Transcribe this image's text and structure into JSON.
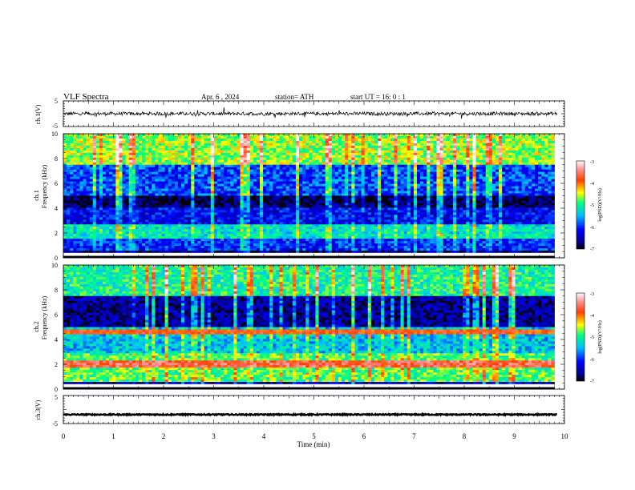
{
  "header": {
    "title": "VLF Spectra",
    "date": "Apr. 6 , 2024",
    "station": "station= ATH",
    "start": "start UT = 16: 0 : 1"
  },
  "chart_data": [
    {
      "type": "line",
      "panel": "ch1-waveform",
      "ylabel": "ch.1(V)",
      "ylim": [
        -5,
        5
      ],
      "y_ticks": [
        "5",
        "-5"
      ],
      "x_range": [
        0,
        10
      ],
      "series": [
        {
          "mean": 0,
          "noise_amplitude_v": 0.7
        }
      ]
    },
    {
      "type": "heatmap",
      "panel": "ch1-spectrogram",
      "ylabel_lines": [
        "ch.1",
        "Frequency (kHz)"
      ],
      "ylim": [
        0,
        10
      ],
      "y_ticks": [
        "0",
        "2",
        "4",
        "6",
        "8",
        "10"
      ],
      "x_range": [
        0,
        10
      ],
      "data_end_min": 9.8,
      "colorbar": {
        "label": "log(PSD)(V²/Hz)",
        "range": [
          -7,
          -3
        ],
        "ticks": [
          "-3",
          "-4",
          "-5",
          "-6",
          "-7"
        ]
      },
      "bands_khz": [
        {
          "from": 0,
          "to": 0.6,
          "log_psd": -6.8
        },
        {
          "from": 0.6,
          "to": 1.5,
          "log_psd": -6.0
        },
        {
          "from": 1.5,
          "to": 2.6,
          "log_psd": -5.2
        },
        {
          "from": 2.6,
          "to": 4.0,
          "log_psd": -6.2
        },
        {
          "from": 4.0,
          "to": 5.0,
          "log_psd": -6.8
        },
        {
          "from": 5.0,
          "to": 7.5,
          "log_psd": -5.9
        },
        {
          "from": 7.5,
          "to": 10.0,
          "log_psd": -4.6
        }
      ]
    },
    {
      "type": "heatmap",
      "panel": "ch2-spectrogram",
      "ylabel_lines": [
        "ch.2",
        "Frequency (kHz)"
      ],
      "ylim": [
        0,
        10
      ],
      "y_ticks": [
        "0",
        "2",
        "4",
        "6",
        "8",
        "10"
      ],
      "x_range": [
        0,
        10
      ],
      "data_end_min": 9.8,
      "colorbar": {
        "label": "log(PSD)(V²/Hz)",
        "range": [
          -7,
          -3
        ],
        "ticks": [
          "-3",
          "-4",
          "-5",
          "-6",
          "-7"
        ]
      },
      "bands_khz": [
        {
          "from": 0,
          "to": 0.6,
          "log_psd": -6.5
        },
        {
          "from": 0.6,
          "to": 2.8,
          "log_psd": -4.8
        },
        {
          "from": 2.8,
          "to": 5.0,
          "log_psd": -5.4
        },
        {
          "from": 5.0,
          "to": 7.5,
          "log_psd": -6.6
        },
        {
          "from": 7.5,
          "to": 10.0,
          "log_psd": -5.0
        }
      ],
      "line_features_khz": [
        {
          "freq": 2.0,
          "log_psd": -3.6
        },
        {
          "freq": 4.6,
          "log_psd": -3.8
        }
      ]
    },
    {
      "type": "line",
      "panel": "ch3-waveform",
      "ylabel": "ch.3(V)",
      "ylim": [
        -5,
        5
      ],
      "y_ticks": [
        "5",
        "-5"
      ],
      "x_range": [
        0,
        10
      ],
      "series": [
        {
          "mean": -1.8,
          "noise_amplitude_v": 0.2
        }
      ]
    }
  ],
  "x_axis": {
    "label": "Time (min)",
    "ticks": [
      "0",
      "1",
      "2",
      "3",
      "4",
      "5",
      "6",
      "7",
      "8",
      "9",
      "10"
    ]
  }
}
